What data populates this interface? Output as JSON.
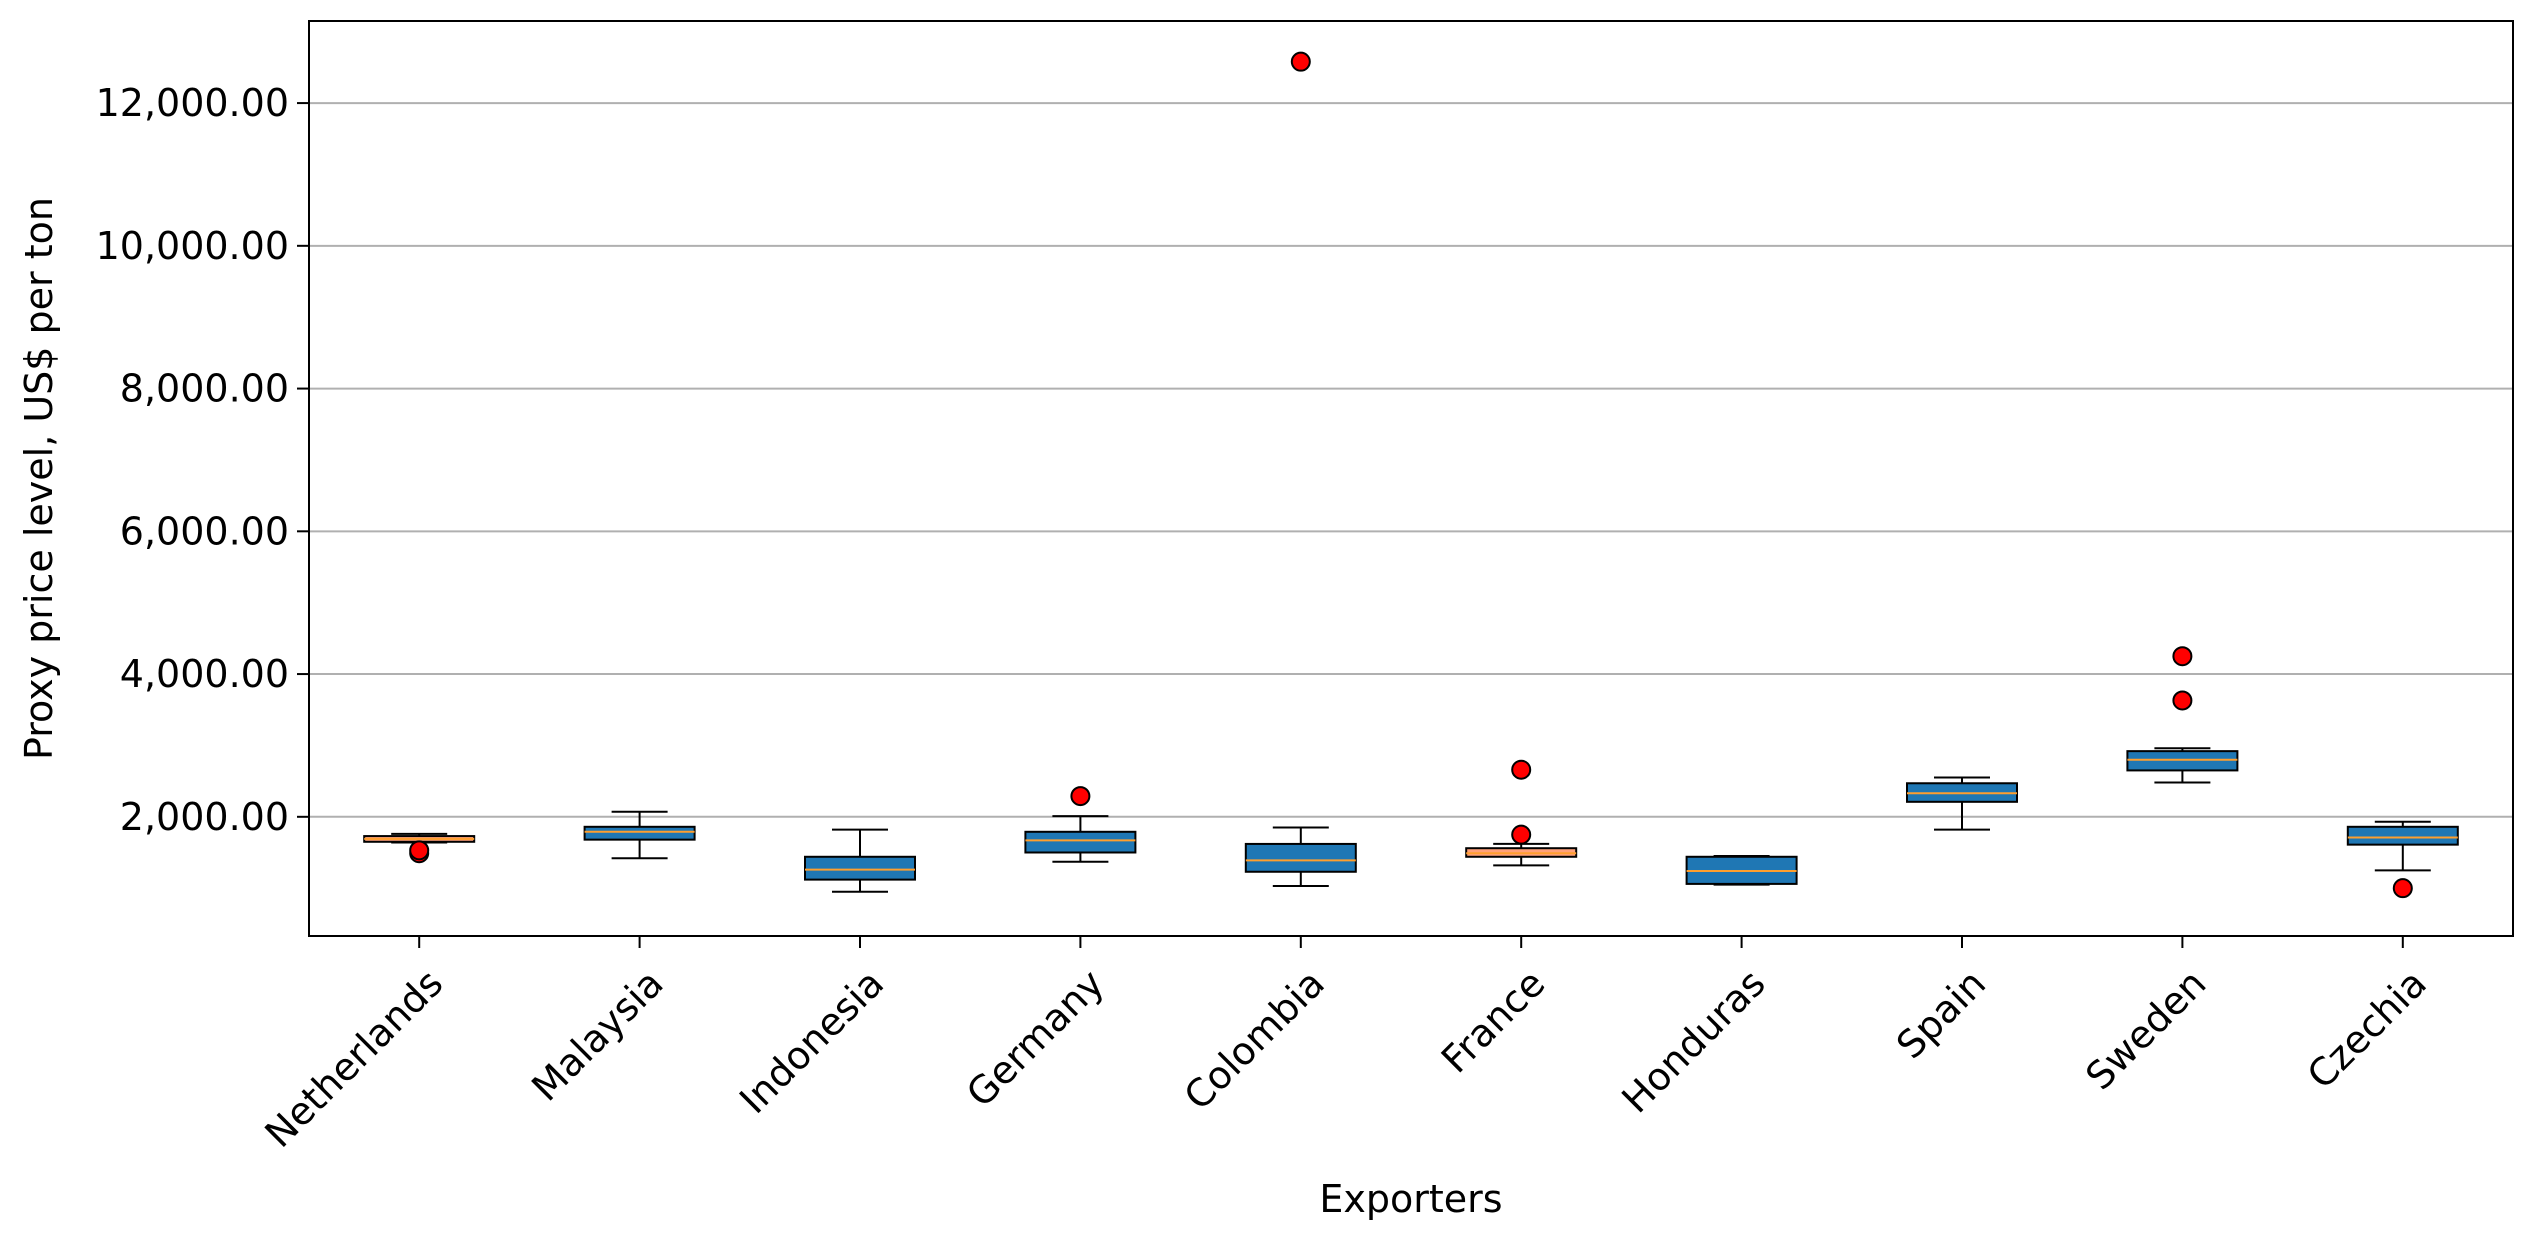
{
  "chart_data": {
    "type": "box",
    "xlabel": "Exporters",
    "ylabel": "Proxy price level, US$ per ton",
    "ylim": [
      330,
      13150
    ],
    "yticks": [
      {
        "value": 2000,
        "label": "2,000.00"
      },
      {
        "value": 4000,
        "label": "4,000.00"
      },
      {
        "value": 6000,
        "label": "6,000.00"
      },
      {
        "value": 8000,
        "label": "8,000.00"
      },
      {
        "value": 10000,
        "label": "10,000.00"
      },
      {
        "value": 12000,
        "label": "12,000.00"
      }
    ],
    "grid": "horizontal",
    "colors": {
      "box_blue": "#1f77b4",
      "box_orange": "#ffa07a",
      "median": "#ff9f2e",
      "outlier": "#ff0000",
      "grid": "#b0b0b0"
    },
    "boxes": [
      {
        "name": "Netherlands",
        "whisker_low": 1640,
        "q1": 1650,
        "median": 1690,
        "q3": 1730,
        "whisker_high": 1760,
        "outliers": [
          1490,
          1530
        ],
        "color": "box_orange"
      },
      {
        "name": "Malaysia",
        "whisker_low": 1420,
        "q1": 1680,
        "median": 1790,
        "q3": 1860,
        "whisker_high": 2070,
        "outliers": [],
        "color": "box_blue"
      },
      {
        "name": "Indonesia",
        "whisker_low": 950,
        "q1": 1120,
        "median": 1260,
        "q3": 1440,
        "whisker_high": 1820,
        "outliers": [],
        "color": "box_blue"
      },
      {
        "name": "Germany",
        "whisker_low": 1370,
        "q1": 1500,
        "median": 1670,
        "q3": 1790,
        "whisker_high": 2010,
        "outliers": [
          2290
        ],
        "color": "box_blue"
      },
      {
        "name": "Colombia",
        "whisker_low": 1030,
        "q1": 1230,
        "median": 1390,
        "q3": 1620,
        "whisker_high": 1850,
        "outliers": [
          12580
        ],
        "color": "box_blue"
      },
      {
        "name": "France",
        "whisker_low": 1320,
        "q1": 1440,
        "median": 1490,
        "q3": 1560,
        "whisker_high": 1620,
        "outliers": [
          1750,
          2660
        ],
        "color": "box_orange"
      },
      {
        "name": "Honduras",
        "whisker_low": 1050,
        "q1": 1060,
        "median": 1240,
        "q3": 1440,
        "whisker_high": 1450,
        "outliers": [],
        "color": "box_blue"
      },
      {
        "name": "Spain",
        "whisker_low": 1820,
        "q1": 2210,
        "median": 2330,
        "q3": 2470,
        "whisker_high": 2550,
        "outliers": [],
        "color": "box_blue"
      },
      {
        "name": "Sweden",
        "whisker_low": 2480,
        "q1": 2650,
        "median": 2800,
        "q3": 2920,
        "whisker_high": 2960,
        "outliers": [
          3630,
          4250
        ],
        "color": "box_blue"
      },
      {
        "name": "Czechia",
        "whisker_low": 1250,
        "q1": 1610,
        "median": 1710,
        "q3": 1860,
        "whisker_high": 1930,
        "outliers": [
          1000
        ],
        "color": "box_blue"
      }
    ]
  }
}
